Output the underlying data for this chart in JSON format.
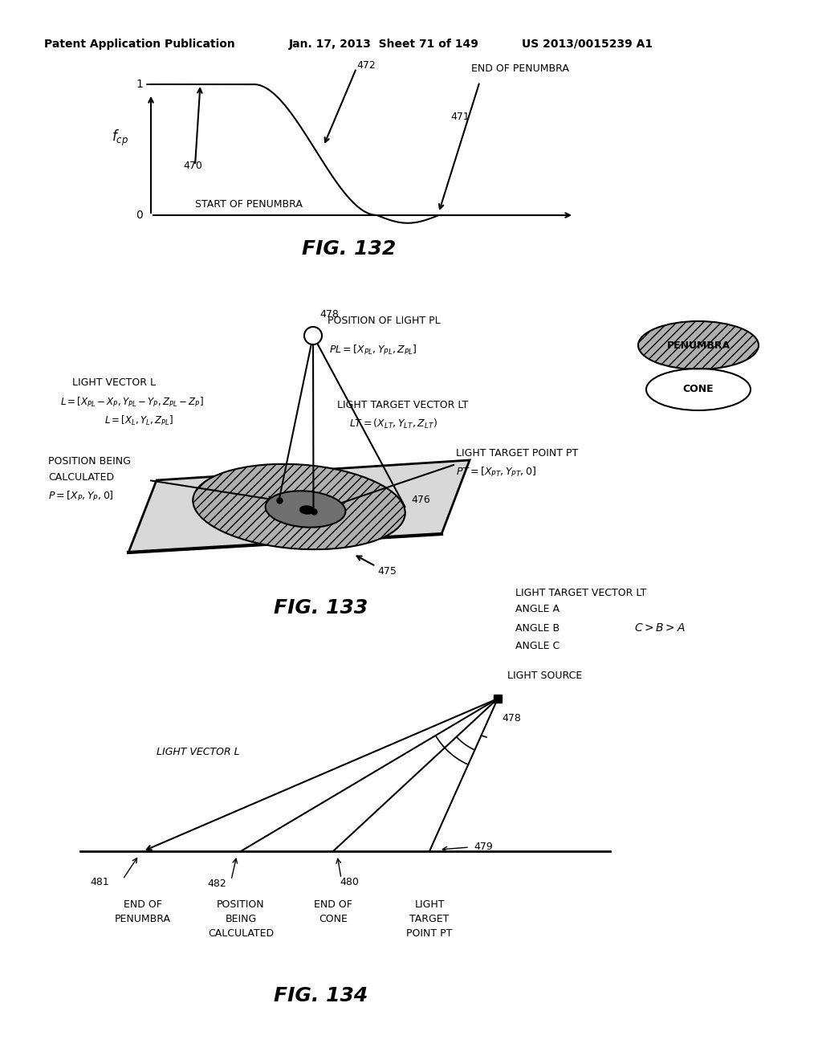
{
  "bg_color": "#ffffff",
  "header_text": "Patent Application Publication",
  "header_date": "Jan. 17, 2013  Sheet 71 of 149",
  "header_patent": "US 2013/0015239 A1",
  "fig132_title": "FIG. 132",
  "fig133_title": "FIG. 133",
  "fig134_title": "FIG. 134"
}
